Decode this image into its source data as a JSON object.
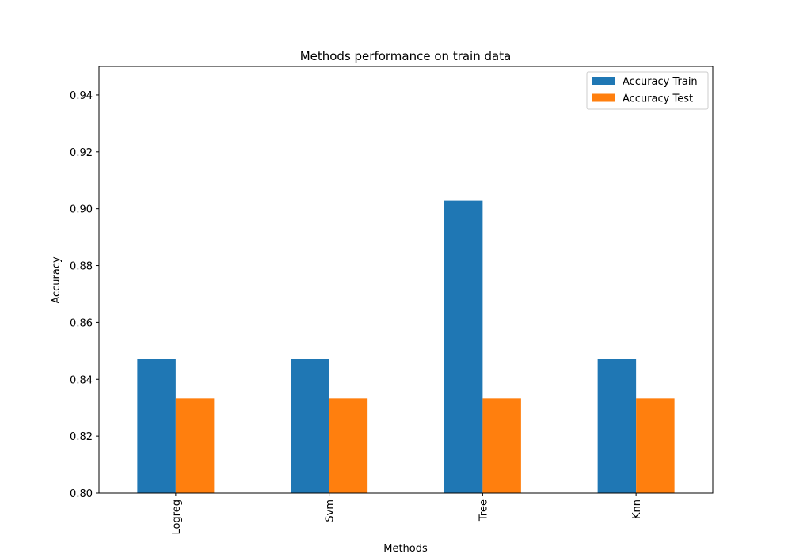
{
  "chart_data": {
    "type": "bar",
    "title": "Methods performance on train data",
    "xlabel": "Methods",
    "ylabel": "Accuracy",
    "categories": [
      "Logreg",
      "Svm",
      "Tree",
      "Knn"
    ],
    "series": [
      {
        "name": "Accuracy Train",
        "values": [
          0.8472,
          0.8472,
          0.9028,
          0.8472
        ],
        "color": "#1f77b4"
      },
      {
        "name": "Accuracy Test",
        "values": [
          0.8333,
          0.8333,
          0.8333,
          0.8333
        ],
        "color": "#ff7f0e"
      }
    ],
    "ylim": [
      0.8,
      0.95
    ],
    "yticks": [
      "0.80",
      "0.82",
      "0.84",
      "0.86",
      "0.88",
      "0.90",
      "0.92",
      "0.94"
    ],
    "grid": false,
    "legend_position": "top-right"
  }
}
